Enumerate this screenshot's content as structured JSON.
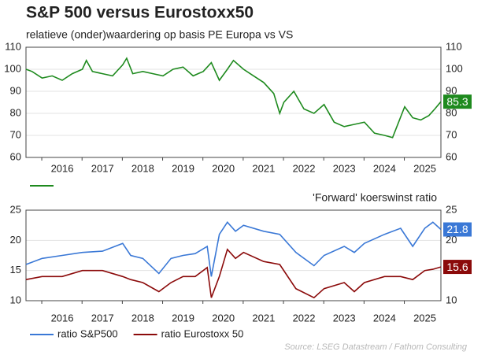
{
  "title": "S&P 500 versus Eurostoxx50",
  "subtitle": "relatieve (onder)waardering op basis PE Europa vs VS",
  "source": "Source: LSEG Datastream / Fathom Consulting",
  "chart_data": [
    {
      "type": "line",
      "x": [
        2015.6,
        2015.75,
        2016,
        2016.25,
        2016.5,
        2016.75,
        2017,
        2017.1,
        2017.25,
        2017.5,
        2017.75,
        2018,
        2018.1,
        2018.25,
        2018.5,
        2018.75,
        2019,
        2019.25,
        2019.5,
        2019.75,
        2020,
        2020.2,
        2020.4,
        2020.6,
        2020.75,
        2021,
        2021.25,
        2021.5,
        2021.75,
        2021.9,
        2022,
        2022.25,
        2022.5,
        2022.75,
        2023,
        2023.25,
        2023.5,
        2023.75,
        2024,
        2024.25,
        2024.5,
        2024.7,
        2024.85,
        2025,
        2025.2,
        2025.4,
        2025.6,
        2025.75,
        2025.9
      ],
      "series": [
        {
          "color": "#1e8a1e",
          "values": [
            100,
            99,
            96,
            97,
            95,
            98,
            100,
            104,
            99,
            98,
            97,
            102,
            105,
            98,
            99,
            98,
            97,
            100,
            101,
            97,
            99,
            103,
            95,
            100,
            104,
            100,
            97,
            94,
            89,
            80,
            85,
            90,
            82,
            80,
            84,
            76,
            74,
            75,
            76,
            71,
            70,
            69,
            76,
            83,
            78,
            77,
            79,
            82,
            85.3
          ]
        }
      ],
      "xlim": [
        2015.6,
        2025.9
      ],
      "xticks": [
        {
          "value": 2016.5,
          "label": "2016"
        },
        {
          "value": 2017.5,
          "label": "2017"
        },
        {
          "value": 2018.5,
          "label": "2018"
        },
        {
          "value": 2019.5,
          "label": "2019"
        },
        {
          "value": 2020.5,
          "label": "2020"
        },
        {
          "value": 2021.5,
          "label": "2021"
        },
        {
          "value": 2022.5,
          "label": "2022"
        },
        {
          "value": 2023.5,
          "label": "2023"
        },
        {
          "value": 2024.5,
          "label": "2024"
        },
        {
          "value": 2025.5,
          "label": "2025"
        }
      ],
      "ylim": [
        60,
        110
      ],
      "yticks": [
        60,
        70,
        80,
        90,
        100,
        110
      ],
      "grid": true
    },
    {
      "type": "line",
      "title": "'Forward' koerswinst ratio",
      "x": [
        2015.6,
        2016,
        2016.5,
        2017,
        2017.5,
        2018,
        2018.2,
        2018.5,
        2018.9,
        2019.2,
        2019.5,
        2019.8,
        2020.1,
        2020.2,
        2020.4,
        2020.6,
        2020.8,
        2021,
        2021.5,
        2021.9,
        2022.3,
        2022.75,
        2023,
        2023.5,
        2023.75,
        2024,
        2024.5,
        2024.9,
        2025.2,
        2025.5,
        2025.7,
        2025.9
      ],
      "series": [
        {
          "name": "ratio S&P500",
          "color": "#3a78d6",
          "values": [
            16,
            17,
            17.5,
            18,
            18.2,
            19.5,
            17.5,
            17,
            14.5,
            17,
            17.5,
            17.8,
            19,
            14,
            21,
            23,
            21.5,
            22.5,
            21.5,
            21,
            18,
            15.8,
            17.5,
            19,
            18,
            19.5,
            21,
            22,
            19,
            22,
            23,
            21.8
          ]
        },
        {
          "name": "ratio Eurostoxx 50",
          "color": "#8b0a0a",
          "values": [
            13.5,
            14,
            14,
            15,
            15,
            14,
            13.5,
            13,
            11.5,
            13,
            14,
            14,
            15.5,
            10.5,
            14,
            18.5,
            17,
            18,
            16.5,
            16,
            12,
            10.5,
            12,
            13,
            11.5,
            13,
            14,
            14,
            13.5,
            15,
            15.2,
            15.6
          ]
        }
      ],
      "xlim": [
        2015.6,
        2025.9
      ],
      "xticks": [
        {
          "value": 2016.5,
          "label": "2016"
        },
        {
          "value": 2017.5,
          "label": "2017"
        },
        {
          "value": 2018.5,
          "label": "2018"
        },
        {
          "value": 2019.5,
          "label": "2019"
        },
        {
          "value": 2020.5,
          "label": "2020"
        },
        {
          "value": 2021.5,
          "label": "2021"
        },
        {
          "value": 2022.5,
          "label": "2022"
        },
        {
          "value": 2023.5,
          "label": "2023"
        },
        {
          "value": 2024.5,
          "label": "2024"
        },
        {
          "value": 2025.5,
          "label": "2025"
        }
      ],
      "ylim": [
        10,
        25
      ],
      "yticks": [
        10,
        15,
        20,
        25
      ],
      "grid": true
    }
  ]
}
